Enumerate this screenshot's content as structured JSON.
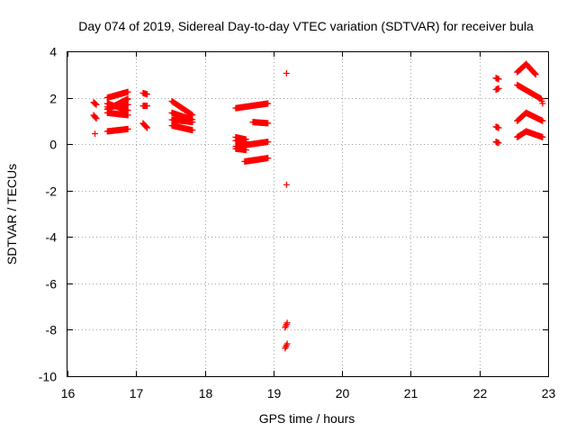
{
  "chart_data": {
    "type": "scatter",
    "title": "Day 074 of 2019, Sidereal Day-to-day VTEC variation (SDTVAR) for receiver bula",
    "xlabel": "GPS time / hours",
    "ylabel": "SDTVAR / TECUs",
    "xlim": [
      16,
      23
    ],
    "ylim": [
      -10,
      4
    ],
    "xticks": [
      16,
      17,
      18,
      19,
      20,
      21,
      22,
      23
    ],
    "yticks": [
      -10,
      -8,
      -6,
      -4,
      -2,
      0,
      2,
      4
    ],
    "grid": true,
    "marker": "plus",
    "color": "#ff0000",
    "series": [
      {
        "name": "SDTVAR",
        "segments": [
          {
            "x": [
              16.38,
              16.42
            ],
            "y": [
              1.8,
              1.7
            ]
          },
          {
            "x": [
              16.38,
              16.42
            ],
            "y": [
              1.25,
              1.1
            ]
          },
          {
            "x": [
              16.4
            ],
            "y": [
              0.45
            ]
          },
          {
            "x": [
              16.58,
              16.88
            ],
            "y": [
              2.0,
              2.25
            ]
          },
          {
            "x": [
              16.58,
              16.88
            ],
            "y": [
              1.5,
              1.95
            ]
          },
          {
            "x": [
              16.58,
              16.88
            ],
            "y": [
              1.75,
              1.45
            ]
          },
          {
            "x": [
              16.58,
              16.88
            ],
            "y": [
              1.6,
              1.7
            ]
          },
          {
            "x": [
              16.58,
              16.88
            ],
            "y": [
              1.35,
              1.25
            ]
          },
          {
            "x": [
              16.58,
              16.88
            ],
            "y": [
              0.55,
              0.65
            ]
          },
          {
            "x": [
              17.1,
              17.16
            ],
            "y": [
              2.2,
              2.15
            ]
          },
          {
            "x": [
              17.1,
              17.16
            ],
            "y": [
              1.65,
              1.65
            ]
          },
          {
            "x": [
              17.1,
              17.16
            ],
            "y": [
              0.9,
              0.7
            ]
          },
          {
            "x": [
              17.52,
              17.82
            ],
            "y": [
              1.85,
              1.25
            ]
          },
          {
            "x": [
              17.52,
              17.82
            ],
            "y": [
              1.35,
              1.05
            ]
          },
          {
            "x": [
              17.52,
              17.82
            ],
            "y": [
              1.05,
              0.95
            ]
          },
          {
            "x": [
              17.52,
              17.82
            ],
            "y": [
              0.8,
              0.6
            ]
          },
          {
            "x": [
              18.45,
              18.92
            ],
            "y": [
              1.55,
              1.75
            ]
          },
          {
            "x": [
              18.7,
              18.92
            ],
            "y": [
              0.95,
              0.9
            ]
          },
          {
            "x": [
              18.45,
              18.6
            ],
            "y": [
              0.3,
              0.2
            ]
          },
          {
            "x": [
              18.45,
              18.6
            ],
            "y": [
              0.15,
              0.1
            ]
          },
          {
            "x": [
              18.45,
              18.92
            ],
            "y": [
              -0.1,
              0.1
            ]
          },
          {
            "x": [
              18.45,
              18.6
            ],
            "y": [
              -0.2,
              -0.25
            ]
          },
          {
            "x": [
              18.58,
              18.92
            ],
            "y": [
              -0.75,
              -0.6
            ]
          },
          {
            "x": [
              19.19
            ],
            "y": [
              3.05
            ]
          },
          {
            "x": [
              19.19
            ],
            "y": [
              -1.75
            ]
          },
          {
            "x": [
              19.17,
              19.2
            ],
            "y": [
              -7.9,
              -7.7
            ]
          },
          {
            "x": [
              19.17,
              19.2
            ],
            "y": [
              -8.8,
              -8.6
            ]
          },
          {
            "x": [
              22.24,
              22.28
            ],
            "y": [
              2.85,
              2.8
            ]
          },
          {
            "x": [
              22.24,
              22.28
            ],
            "y": [
              2.35,
              2.4
            ]
          },
          {
            "x": [
              22.24,
              22.28
            ],
            "y": [
              0.75,
              0.7
            ]
          },
          {
            "x": [
              22.24,
              22.28
            ],
            "y": [
              0.1,
              0.05
            ]
          },
          {
            "x": [
              22.55,
              22.68
            ],
            "y": [
              3.1,
              3.45
            ]
          },
          {
            "x": [
              22.68,
              22.82
            ],
            "y": [
              3.45,
              3.0
            ]
          },
          {
            "x": [
              22.55,
              22.9
            ],
            "y": [
              2.55,
              1.95
            ]
          },
          {
            "x": [
              22.9,
              22.92
            ],
            "y": [
              1.95,
              1.75
            ]
          },
          {
            "x": [
              22.55,
              22.68
            ],
            "y": [
              1.0,
              1.35
            ]
          },
          {
            "x": [
              22.68,
              22.92
            ],
            "y": [
              1.35,
              1.0
            ]
          },
          {
            "x": [
              22.55,
              22.68
            ],
            "y": [
              0.3,
              0.55
            ]
          },
          {
            "x": [
              22.68,
              22.92
            ],
            "y": [
              0.55,
              0.3
            ]
          }
        ]
      }
    ]
  }
}
